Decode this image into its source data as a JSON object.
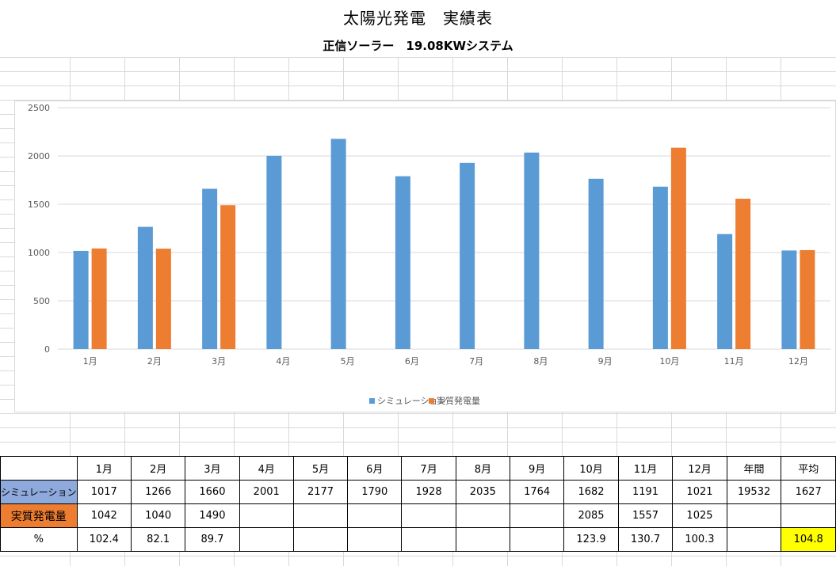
{
  "header": {
    "title": "太陽光発電　実績表",
    "subtitle": "正信ソーラー　19.08KWシステム"
  },
  "colors": {
    "simulation": "#5b9bd5",
    "actual": "#ed7d31",
    "simulation_label_bg": "#8ea9db",
    "highlight": "#ffff00"
  },
  "chart_data": {
    "type": "bar",
    "categories": [
      "1月",
      "2月",
      "3月",
      "4月",
      "5月",
      "6月",
      "7月",
      "8月",
      "9月",
      "10月",
      "11月",
      "12月"
    ],
    "series": [
      {
        "name": "シミュレーション",
        "values": [
          1017,
          1266,
          1660,
          2001,
          2177,
          1790,
          1928,
          2035,
          1764,
          1682,
          1191,
          1021
        ]
      },
      {
        "name": "実質発電量",
        "values": [
          1042,
          1040,
          1490,
          null,
          null,
          null,
          null,
          null,
          null,
          2085,
          1557,
          1025
        ]
      }
    ],
    "ylim": [
      0,
      2500
    ],
    "yticks": [
      0,
      500,
      1000,
      1500,
      2000,
      2500
    ],
    "grid": true,
    "legend": "bottom"
  },
  "table": {
    "headers": [
      "",
      "1月",
      "2月",
      "3月",
      "4月",
      "5月",
      "6月",
      "7月",
      "8月",
      "9月",
      "10月",
      "11月",
      "12月",
      "年間",
      "平均"
    ],
    "rows": [
      {
        "label": "シミュレーション",
        "cells": [
          "1017",
          "1266",
          "1660",
          "2001",
          "2177",
          "1790",
          "1928",
          "2035",
          "1764",
          "1682",
          "1191",
          "1021",
          "19532",
          "1627"
        ]
      },
      {
        "label": "実質発電量",
        "cells": [
          "1042",
          "1040",
          "1490",
          "",
          "",
          "",
          "",
          "",
          "",
          "2085",
          "1557",
          "1025",
          "",
          ""
        ]
      },
      {
        "label": "%",
        "cells": [
          "102.4",
          "82.1",
          "89.7",
          "",
          "",
          "",
          "",
          "",
          "",
          "123.9",
          "130.7",
          "100.3",
          "",
          "104.8"
        ]
      }
    ]
  }
}
